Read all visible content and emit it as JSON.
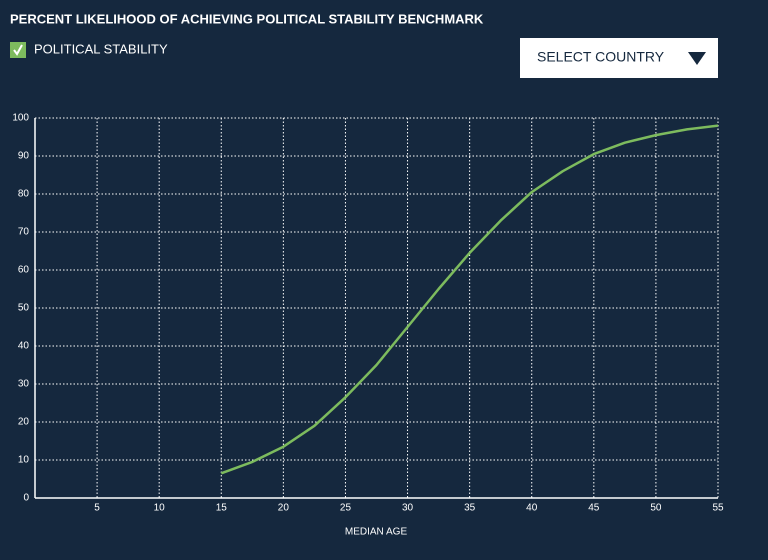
{
  "chart_data": {
    "type": "line",
    "title": "PERCENT LIKELIHOOD OF ACHIEVING POLITICAL STABILITY BENCHMARK",
    "x_label": "MEDIAN AGE",
    "x": [
      15,
      17.5,
      20,
      22.5,
      25,
      27.5,
      30,
      32.5,
      35,
      37.5,
      40,
      42.5,
      45,
      47.5,
      50,
      52.5,
      55
    ],
    "series": [
      {
        "name": "POLITICAL STABILITY",
        "color": "#7dbb5e",
        "values": [
          6.5,
          9.5,
          13.5,
          19,
          26.5,
          35,
          45,
          55,
          64.5,
          73,
          80.5,
          86,
          90.5,
          93.5,
          95.5,
          97,
          98
        ]
      }
    ],
    "xlim": [
      0,
      55
    ],
    "xticks": [
      5,
      10,
      15,
      20,
      25,
      30,
      35,
      40,
      45,
      50,
      55
    ],
    "ylim": [
      0,
      100
    ],
    "yticks": [
      0,
      10,
      20,
      30,
      40,
      50,
      60,
      70,
      80,
      90,
      100
    ],
    "grid": true
  },
  "controls": {
    "dropdown": "SELECT COUNTRY"
  }
}
